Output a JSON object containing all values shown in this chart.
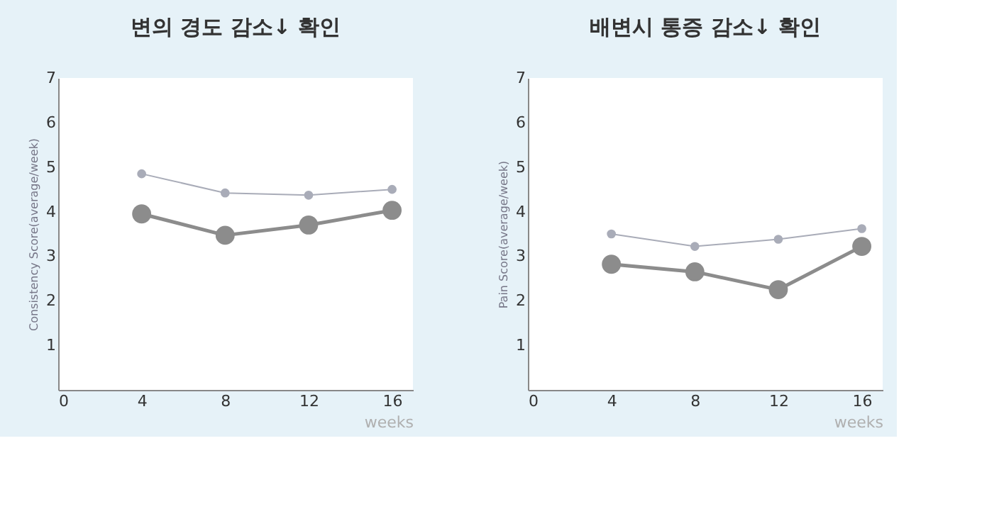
{
  "chart_data": [
    {
      "type": "line",
      "title": "변의 경도 감소↓ 확인",
      "xlabel": "weeks",
      "ylabel": "Consistency Score(average/week)",
      "x": [
        4,
        8,
        12,
        16
      ],
      "xlim": [
        0,
        17
      ],
      "xticks": [
        0,
        4,
        8,
        12,
        16
      ],
      "ylim": [
        0,
        7
      ],
      "yticks": [
        1,
        2,
        3,
        4,
        5,
        6,
        7
      ],
      "grid": false,
      "marker": "circle",
      "line_style": "solid",
      "series": [
        {
          "color": "#a9acb8",
          "values": [
            4.85,
            4.42,
            4.37,
            4.5
          ]
        },
        {
          "color": "#8c8c8c",
          "values": [
            3.95,
            3.47,
            3.7,
            4.03
          ]
        }
      ]
    },
    {
      "type": "line",
      "title": "배변시 통증 감소↓ 확인",
      "xlabel": "weeks",
      "ylabel": "Pain Score(average/week)",
      "x": [
        4,
        8,
        12,
        16
      ],
      "xlim": [
        0,
        17
      ],
      "xticks": [
        0,
        4,
        8,
        12,
        16
      ],
      "ylim": [
        0,
        7
      ],
      "yticks": [
        1,
        2,
        3,
        4,
        5,
        6,
        7
      ],
      "grid": false,
      "marker": "circle",
      "line_style": "solid",
      "series": [
        {
          "color": "#a9acb8",
          "values": [
            3.5,
            3.22,
            3.38,
            3.62
          ]
        },
        {
          "color": "#8c8c8c",
          "values": [
            2.82,
            2.65,
            2.25,
            3.22
          ]
        }
      ]
    }
  ]
}
